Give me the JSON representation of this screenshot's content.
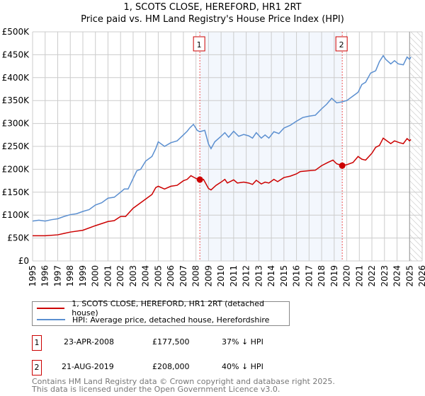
{
  "chart_data": {
    "type": "line",
    "title": "1, SCOTS CLOSE, HEREFORD, HR1 2RT",
    "subtitle": "Price paid vs. HM Land Registry's House Price Index (HPI)",
    "xlim": [
      1995,
      2026
    ],
    "ylim": [
      0,
      500000
    ],
    "x_ticks": [
      "1995",
      "1996",
      "1997",
      "1998",
      "1999",
      "2000",
      "2001",
      "2002",
      "2003",
      "2004",
      "2005",
      "2006",
      "2007",
      "2008",
      "2009",
      "2010",
      "2011",
      "2012",
      "2013",
      "2014",
      "2015",
      "2016",
      "2017",
      "2018",
      "2019",
      "2020",
      "2021",
      "2022",
      "2023",
      "2024",
      "2025",
      "2026"
    ],
    "y_ticks": [
      "£0",
      "£50K",
      "£100K",
      "£150K",
      "£200K",
      "£250K",
      "£300K",
      "£350K",
      "£400K",
      "£450K",
      "£500K"
    ],
    "grid": true,
    "shaded_range": [
      2008.31,
      2019.64
    ],
    "forecast_hatch_from": 2025.0,
    "series": [
      {
        "name": "1, SCOTS CLOSE, HEREFORD, HR1 2RT (detached house)",
        "color": "#cc0000",
        "x": [
          1995,
          1996,
          1997,
          1997.5,
          1998,
          1999,
          2000,
          2001,
          2001.5,
          2002,
          2002.4,
          2003,
          2003.5,
          2004,
          2004.5,
          2004.8,
          2005,
          2005.5,
          2006,
          2006.5,
          2007,
          2007.3,
          2007.6,
          2008,
          2008.31,
          2008.6,
          2009,
          2009.2,
          2009.6,
          2010,
          2010.3,
          2010.5,
          2011,
          2011.3,
          2011.8,
          2012.2,
          2012.5,
          2012.8,
          2013.2,
          2013.5,
          2013.8,
          2014.2,
          2014.5,
          2015,
          2015.5,
          2016,
          2016.3,
          2017,
          2017.5,
          2018,
          2018.5,
          2018.9,
          2019.2,
          2019.64,
          2020,
          2020.5,
          2020.9,
          2021.2,
          2021.5,
          2022,
          2022.3,
          2022.6,
          2022.9,
          2023.2,
          2023.5,
          2023.8,
          2024.2,
          2024.5,
          2024.8,
          2025,
          2025.1
        ],
        "y": [
          55000,
          55000,
          57000,
          60000,
          63000,
          67000,
          77000,
          86000,
          88000,
          97000,
          97000,
          115000,
          125000,
          135000,
          145000,
          160000,
          163000,
          157000,
          163000,
          165000,
          175000,
          178000,
          186000,
          180000,
          177500,
          178000,
          158000,
          155000,
          165000,
          172000,
          178000,
          170000,
          177000,
          170000,
          172000,
          170000,
          167000,
          176000,
          168000,
          172000,
          170000,
          178000,
          173000,
          182000,
          185000,
          190000,
          195000,
          197000,
          198000,
          208000,
          215000,
          220000,
          212000,
          208000,
          210000,
          215000,
          228000,
          222000,
          220000,
          235000,
          248000,
          252000,
          268000,
          262000,
          256000,
          262000,
          258000,
          256000,
          267000,
          262000,
          265000
        ]
      },
      {
        "name": "HPI: Average price, detached house, Herefordshire",
        "color": "#5b8fd0",
        "x": [
          1995,
          1995.5,
          1996,
          1996.5,
          1997,
          1997.5,
          1998,
          1998.5,
          1999,
          1999.5,
          2000,
          2000.5,
          2001,
          2001.5,
          2002,
          2002.3,
          2002.6,
          2003,
          2003.3,
          2003.6,
          2004,
          2004.5,
          2004.8,
          2005,
          2005.5,
          2006,
          2006.5,
          2007,
          2007.3,
          2007.5,
          2007.8,
          2008.1,
          2008.3,
          2008.7,
          2009,
          2009.2,
          2009.5,
          2010,
          2010.3,
          2010.6,
          2011,
          2011.4,
          2011.8,
          2012.2,
          2012.5,
          2012.8,
          2013.2,
          2013.5,
          2013.8,
          2014.2,
          2014.6,
          2015,
          2015.5,
          2016,
          2016.5,
          2017,
          2017.5,
          2018,
          2018.4,
          2018.8,
          2019.2,
          2019.6,
          2020,
          2020.5,
          2020.9,
          2021.2,
          2021.5,
          2021.9,
          2022.3,
          2022.6,
          2022.9,
          2023.1,
          2023.5,
          2023.8,
          2024.1,
          2024.5,
          2024.8,
          2025,
          2025.1
        ],
        "y": [
          87000,
          89000,
          87000,
          90000,
          92000,
          97000,
          101000,
          103000,
          108000,
          112000,
          122000,
          127000,
          137000,
          139000,
          150000,
          157000,
          157000,
          180000,
          197000,
          200000,
          218000,
          228000,
          245000,
          260000,
          250000,
          258000,
          262000,
          275000,
          283000,
          290000,
          298000,
          285000,
          282000,
          285000,
          255000,
          245000,
          260000,
          272000,
          280000,
          270000,
          283000,
          272000,
          276000,
          273000,
          268000,
          280000,
          268000,
          275000,
          268000,
          282000,
          278000,
          290000,
          296000,
          305000,
          313000,
          316000,
          318000,
          332000,
          342000,
          355000,
          345000,
          347000,
          350000,
          360000,
          368000,
          385000,
          390000,
          410000,
          415000,
          435000,
          448000,
          440000,
          430000,
          437000,
          430000,
          428000,
          445000,
          440000,
          445000
        ]
      }
    ],
    "sales": [
      {
        "id": "1",
        "date": "23-APR-2008",
        "price": "£177,500",
        "hpi": "37% ↓ HPI",
        "x": 2008.31,
        "y": 177500
      },
      {
        "id": "2",
        "date": "21-AUG-2019",
        "price": "£208,000",
        "hpi": "40% ↓ HPI",
        "x": 2019.64,
        "y": 208000
      }
    ]
  },
  "footer": {
    "line1": "Contains HM Land Registry data © Crown copyright and database right 2025.",
    "line2": "This data is licensed under the Open Government Licence v3.0."
  }
}
